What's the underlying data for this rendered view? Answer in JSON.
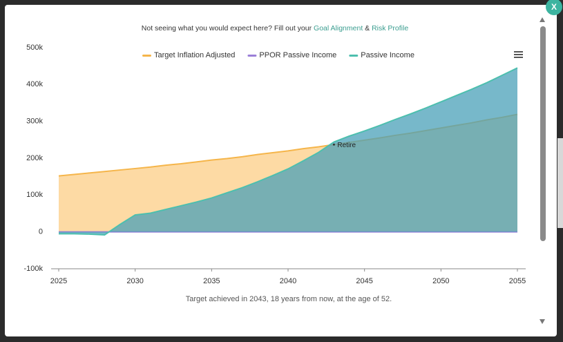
{
  "close_button": "X",
  "notice": {
    "prefix": "Not seeing what you would expect here? Fill out your ",
    "link1": "Goal Alignment",
    "joiner": " & ",
    "link2": "Risk Profile"
  },
  "chart_data": {
    "type": "area",
    "x": [
      2025,
      2026,
      2027,
      2028,
      2029,
      2030,
      2031,
      2032,
      2033,
      2034,
      2035,
      2036,
      2037,
      2038,
      2039,
      2040,
      2041,
      2042,
      2043,
      2044,
      2045,
      2046,
      2047,
      2048,
      2049,
      2050,
      2051,
      2052,
      2053,
      2054,
      2055
    ],
    "xlim": [
      2025,
      2055
    ],
    "xticks": [
      2025,
      2030,
      2035,
      2040,
      2045,
      2050,
      2055
    ],
    "ylim": [
      -100000,
      500000
    ],
    "yticks": [
      {
        "value": -100000,
        "label": "-100k"
      },
      0,
      {
        "value": 100000,
        "label": "100k"
      },
      {
        "value": 200000,
        "label": "200k"
      },
      {
        "value": 300000,
        "label": "300k"
      },
      {
        "value": 400000,
        "label": "400k"
      },
      {
        "value": 500000,
        "label": "500k"
      }
    ],
    "series": [
      {
        "name": "Target Inflation Adjusted",
        "color": "#f5b54a",
        "fill": "#fdd494",
        "values": [
          152000,
          156000,
          160000,
          164000,
          168000,
          172000,
          176000,
          181000,
          185000,
          190000,
          195000,
          199000,
          204000,
          210000,
          215000,
          220000,
          226000,
          231000,
          237000,
          243000,
          249000,
          255000,
          262000,
          268000,
          275000,
          282000,
          289000,
          296000,
          304000,
          311000,
          319000
        ]
      },
      {
        "name": "PPOR Passive Income",
        "color": "#9b7fd8",
        "fill": "#b9a3e6",
        "values": [
          0,
          0,
          0,
          0,
          0,
          0,
          0,
          0,
          0,
          0,
          0,
          0,
          0,
          0,
          0,
          0,
          0,
          0,
          0,
          0,
          0,
          0,
          0,
          0,
          0,
          0,
          0,
          0,
          0,
          0,
          0
        ]
      },
      {
        "name": "Passive Income",
        "color": "#4dbfae",
        "fill": "#4aa0b8",
        "values": [
          -5000,
          -5000,
          -6000,
          -8000,
          20000,
          46000,
          51000,
          61000,
          71000,
          81000,
          92000,
          106000,
          120000,
          136000,
          153000,
          171000,
          193000,
          216000,
          244000,
          260000,
          274000,
          289000,
          305000,
          320000,
          336000,
          353000,
          370000,
          387000,
          405000,
          425000,
          445000
        ]
      }
    ],
    "annotations": [
      {
        "text": "Retire",
        "x": 2043
      }
    ],
    "footnote": "Target achieved in 2043, 18 years from now, at the age of 52."
  }
}
